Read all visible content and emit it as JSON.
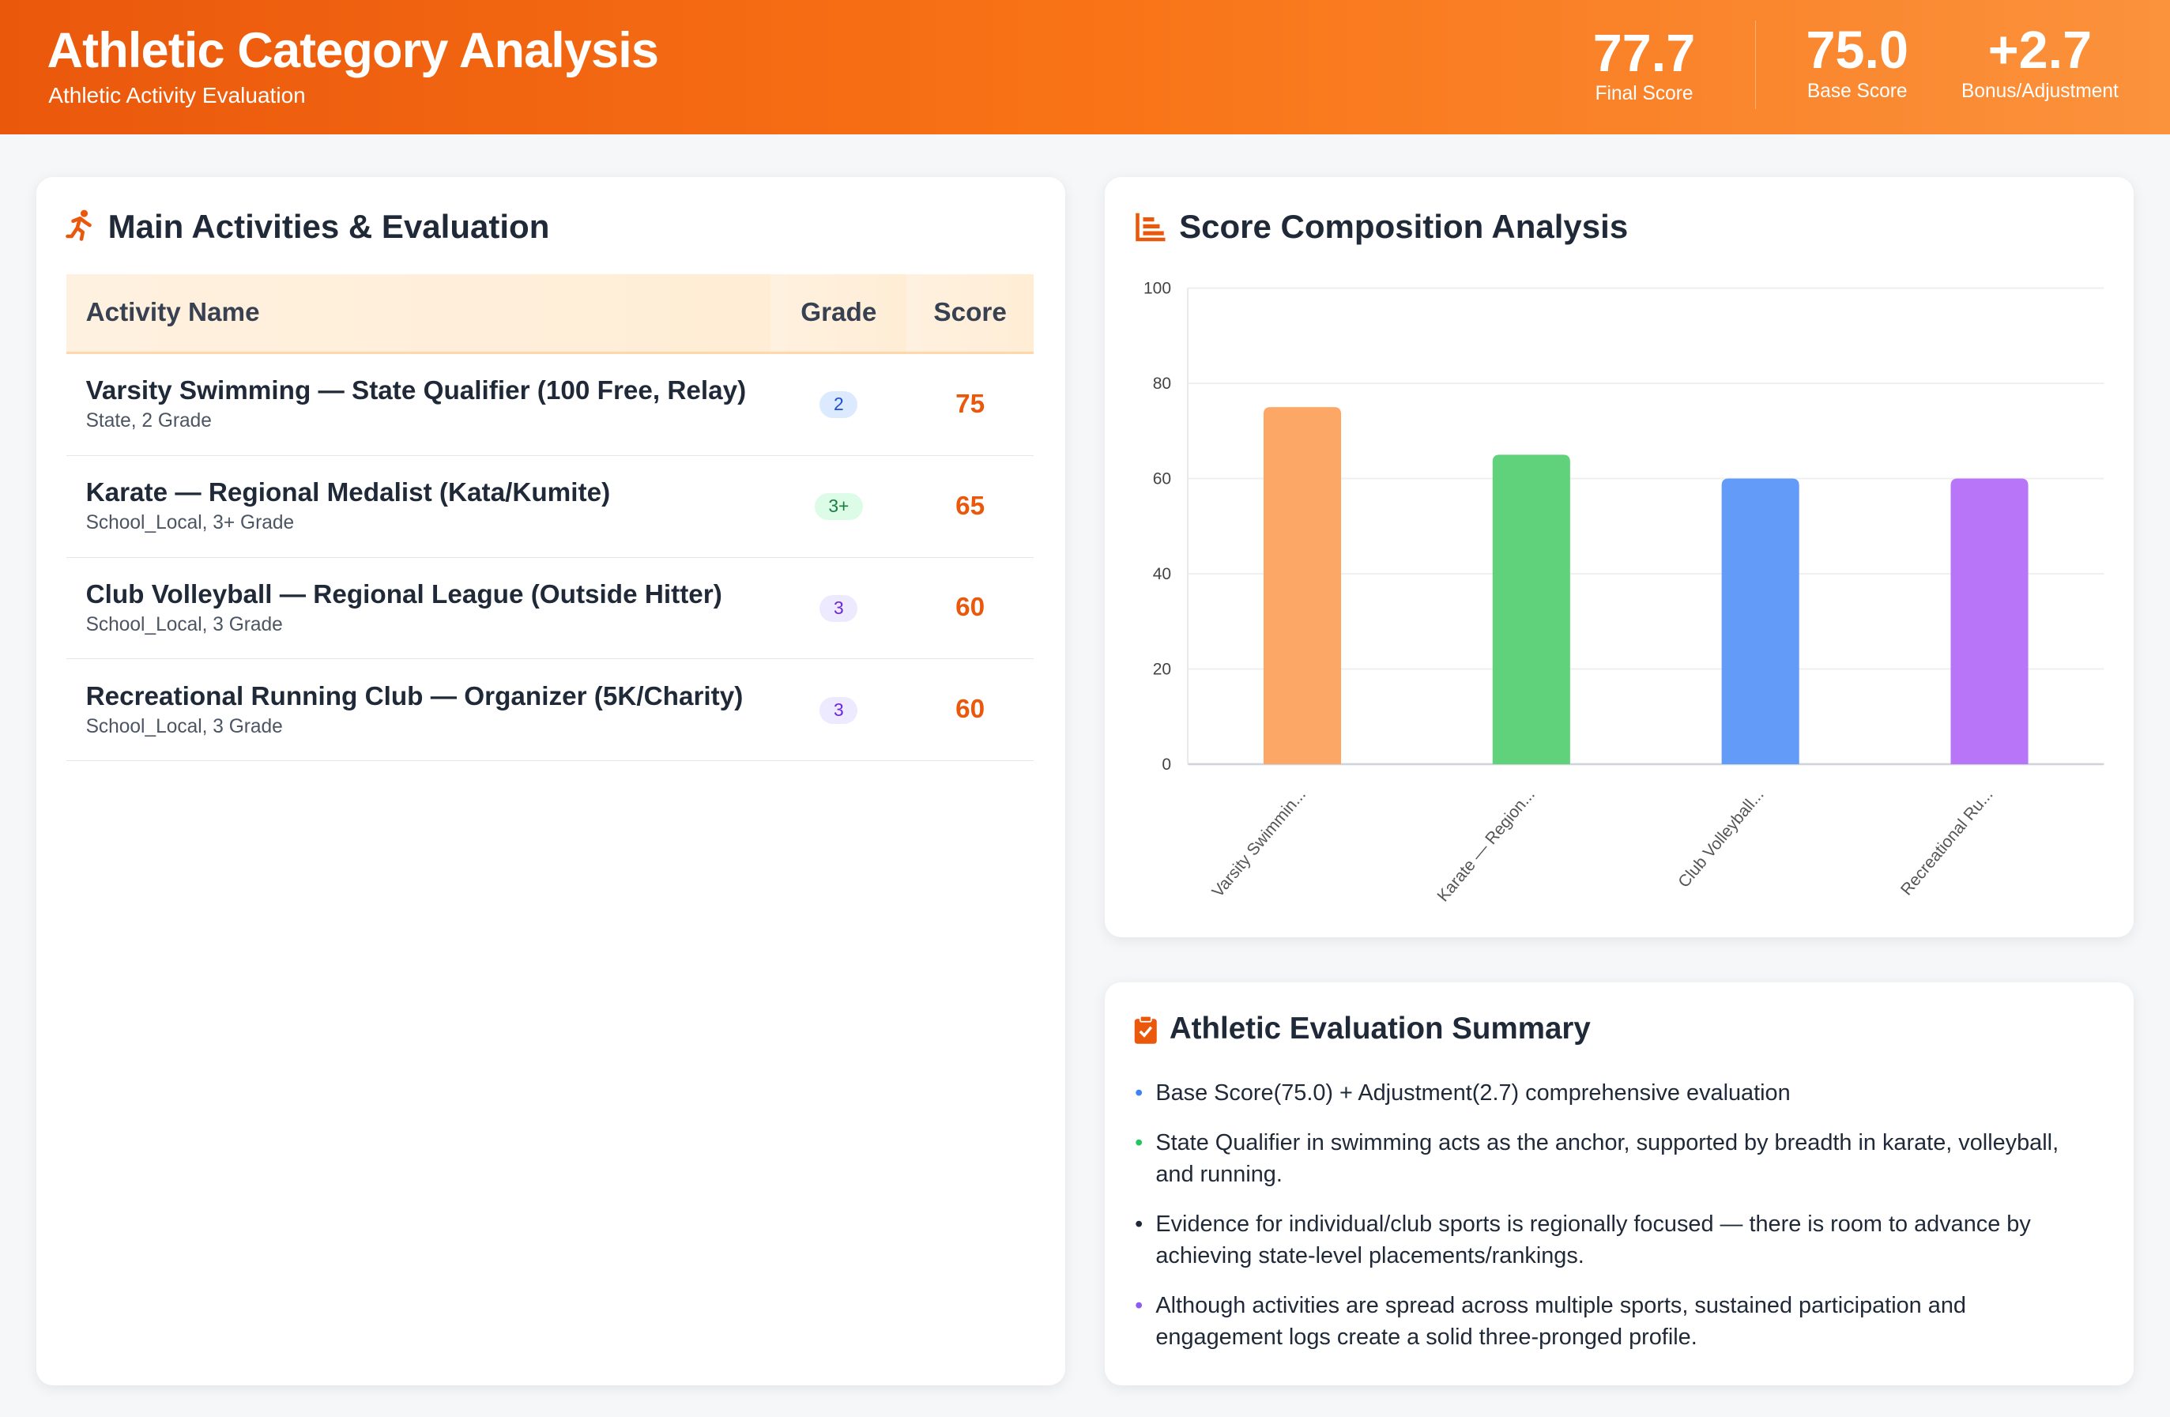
{
  "header": {
    "title": "Athletic Category Analysis",
    "subtitle": "Athletic Activity Evaluation",
    "stats": [
      {
        "value": "77.7",
        "label": "Final Score"
      },
      {
        "value": "75.0",
        "label": "Base Score"
      },
      {
        "value": "+2.7",
        "label": "Bonus/Adjustment"
      }
    ]
  },
  "activities": {
    "title": "Main Activities & Evaluation",
    "icon": "running-icon",
    "columns": [
      "Activity Name",
      "Grade",
      "Score"
    ],
    "rows": [
      {
        "name": "Varsity Swimming — State Qualifier (100 Free, Relay)",
        "sub": "State, 2 Grade",
        "grade": "2",
        "score": "75",
        "badge_bg": "#dbeafe",
        "badge_fg": "#1d4ed8"
      },
      {
        "name": "Karate — Regional Medalist (Kata/Kumite)",
        "sub": "School_Local, 3+ Grade",
        "grade": "3+",
        "score": "65",
        "badge_bg": "#dcfce7",
        "badge_fg": "#15803d"
      },
      {
        "name": "Club Volleyball — Regional League (Outside Hitter)",
        "sub": "School_Local, 3 Grade",
        "grade": "3",
        "score": "60",
        "badge_bg": "#ede9fe",
        "badge_fg": "#6d28d9"
      },
      {
        "name": "Recreational Running Club — Organizer (5K/Charity)",
        "sub": "School_Local, 3 Grade",
        "grade": "3",
        "score": "60",
        "badge_bg": "#ede9fe",
        "badge_fg": "#6d28d9"
      }
    ]
  },
  "chart_card": {
    "title": "Score Composition Analysis",
    "icon": "bar-chart-icon"
  },
  "chart_data": {
    "type": "bar",
    "categories": [
      "Varsity Swimmin...",
      "Karate — Region...",
      "Club Volleyball...",
      "Recreational Ru..."
    ],
    "values": [
      75,
      65,
      60,
      60
    ],
    "colors": [
      "#fda766",
      "#60d27c",
      "#629bf8",
      "#b975f7"
    ],
    "ylim": [
      0,
      100
    ],
    "yticks": [
      0,
      20,
      40,
      60,
      80,
      100
    ],
    "grid": true
  },
  "summary": {
    "title": "Athletic Evaluation Summary",
    "icon": "clipboard-check-icon",
    "items": [
      {
        "text": "Base Score(75.0) + Adjustment(2.7) comprehensive evaluation",
        "color": "#3b82f6"
      },
      {
        "text": "State Qualifier in swimming acts as the anchor, supported by breadth in karate, volleyball, and running.",
        "color": "#22c55e"
      },
      {
        "text": "Evidence for individual/club sports is regionally focused — there is room to advance by achieving state-level placements/rankings.",
        "color": "#1f2937"
      },
      {
        "text": "Although activities are spread across multiple sports, sustained participation and engagement logs create a solid three-pronged profile.",
        "color": "#8b5cf6"
      }
    ]
  }
}
